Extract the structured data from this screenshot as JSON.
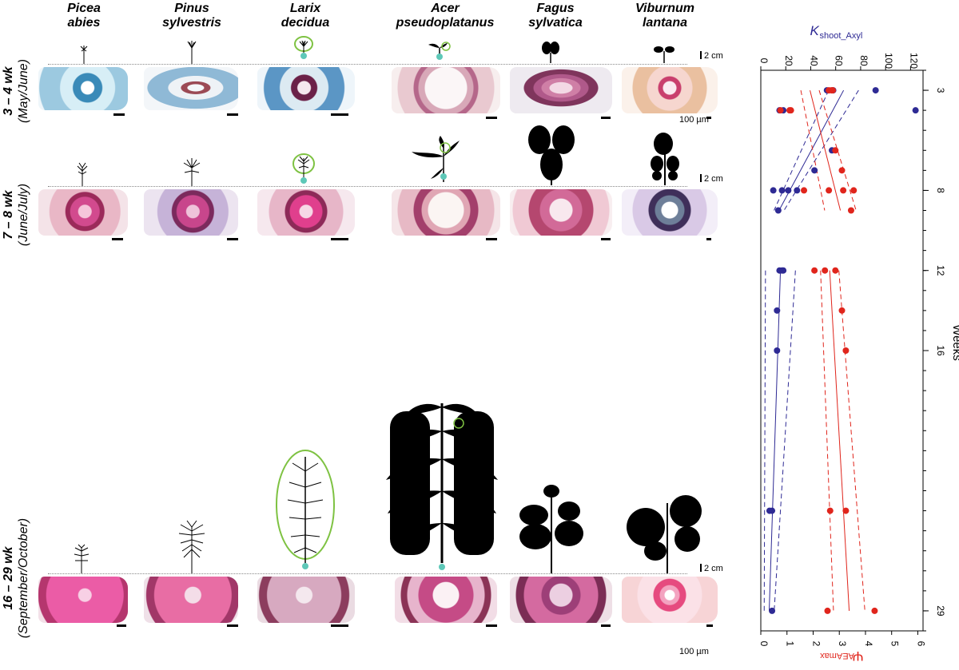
{
  "species": [
    {
      "name": "Picea\nabies"
    },
    {
      "name": "Pinus\nsylvestris"
    },
    {
      "name": "Larix\ndecidua"
    },
    {
      "name": "Acer\npseudoplatanus"
    },
    {
      "name": "Fagus\nsylvatica"
    },
    {
      "name": "Viburnum\nlantana"
    }
  ],
  "rows": [
    {
      "label_line1": "3 – 4 wk",
      "label_line2": "(May/June)"
    },
    {
      "label_line1": "7 – 8 wk",
      "label_line2": "(June/July)"
    },
    {
      "label_line1": "16 – 29 wk",
      "label_line2": "(September/October)"
    }
  ],
  "scale_cm": "2 cm",
  "scale_um": "100 µm",
  "colors": {
    "k_series": "#2e2a94",
    "psi_series": "#e0251c",
    "highlight": "#7ec242",
    "bud": "#5ec8b8"
  },
  "chart_data": {
    "type": "scatter",
    "xlabel": "Weeks",
    "x_ticks": [
      3,
      8,
      12,
      16,
      29
    ],
    "x_range": [
      2,
      30
    ],
    "axis_top_label": "K",
    "axis_top_label_sub": "shoot_Axyl",
    "axis_top_ticks": [
      0,
      20,
      40,
      60,
      80,
      100,
      120
    ],
    "axis_top_range": [
      0,
      130
    ],
    "axis_bottom_label": "Ψ",
    "axis_bottom_label_sub": "AEAmax",
    "axis_bottom_ticks": [
      0,
      1,
      2,
      3,
      4,
      5,
      6
    ],
    "axis_bottom_range": [
      0,
      6.2
    ],
    "series": [
      {
        "values": [
          [
            3,
            92
          ],
          [
            3,
            53
          ],
          [
            3,
            58
          ],
          [
            4,
            124
          ],
          [
            4,
            15
          ],
          [
            4,
            18
          ],
          [
            6,
            57
          ],
          [
            7,
            43
          ],
          [
            8,
            10
          ],
          [
            8,
            17
          ],
          [
            8,
            22
          ],
          [
            8,
            29
          ],
          [
            9,
            14
          ],
          [
            12,
            15
          ],
          [
            12,
            17
          ],
          [
            12,
            18
          ],
          [
            14,
            13
          ],
          [
            16,
            13
          ],
          [
            24,
            7
          ],
          [
            24,
            9
          ],
          [
            29,
            9
          ]
        ]
      },
      {
        "values": [
          [
            3,
            2.6
          ],
          [
            3,
            2.7
          ],
          [
            3,
            2.75
          ],
          [
            4,
            0.75
          ],
          [
            4,
            1.1
          ],
          [
            4,
            1.15
          ],
          [
            6,
            2.85
          ],
          [
            7,
            3.1
          ],
          [
            8,
            1.65
          ],
          [
            8,
            2.6
          ],
          [
            8,
            3.15
          ],
          [
            8,
            3.55
          ],
          [
            9,
            3.45
          ],
          [
            12,
            2.05
          ],
          [
            12,
            2.45
          ],
          [
            12,
            2.85
          ],
          [
            14,
            3.1
          ],
          [
            16,
            3.25
          ],
          [
            24,
            2.65
          ],
          [
            24,
            3.25
          ],
          [
            29,
            2.55
          ],
          [
            29,
            4.35
          ]
        ]
      }
    ]
  }
}
